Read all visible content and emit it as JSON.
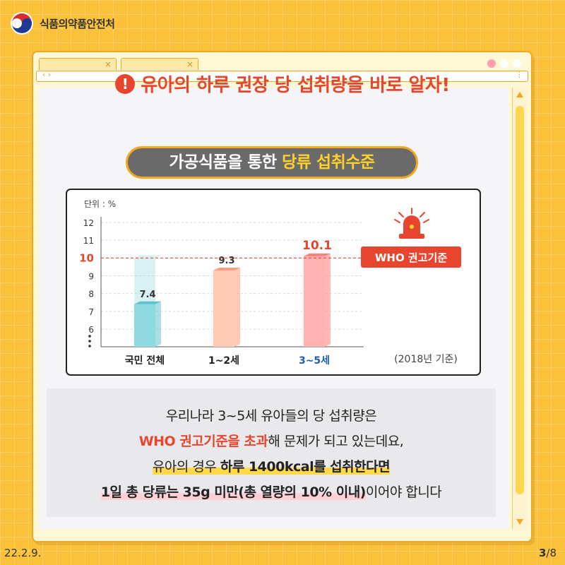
{
  "brand": {
    "name": "식품의약품안전처"
  },
  "headline": "유아의 하루 권장 당 섭취량을 바로 알자!",
  "subtitle": {
    "part1": "가공식품을 통한 ",
    "part2": "당류 섭취수준"
  },
  "chart_data": {
    "type": "bar",
    "title": "",
    "unit_label": "단위 : %",
    "categories": [
      "국민 전체",
      "1~2세",
      "3~5세"
    ],
    "values": [
      7.4,
      9.3,
      10.1
    ],
    "value_labels": [
      "7.4",
      "9.3",
      "10.1"
    ],
    "y_ticks": [
      "6",
      "7",
      "8",
      "9",
      "10",
      "11",
      "12"
    ],
    "ylim": [
      6,
      12
    ],
    "reference_line": {
      "value": 10,
      "label": "WHO 권고기준"
    },
    "footnote": "(2018년 기준)",
    "grid": true,
    "colors": {
      "bar1": "#8fd9e0",
      "bar2": "#ffc9b3",
      "bar3": "#ffb3b0",
      "reference": "#e8452e",
      "highlight_label": "#1f5fa8"
    }
  },
  "note": {
    "line1": "우리나라 3~5세 유아들의 당 섭취량은",
    "line2_red": "WHO 권고기준을 초과",
    "line2_rest": "해 문제가 되고 있는데요,",
    "line3_a": "유아의 경우 ",
    "line3_b": "하루 1400kcal를 섭취한다면",
    "line4_a": "1일 총 당류는 35g 미만(총 열량의 10% 이내)",
    "line4_b": "이어야 합니다"
  },
  "footer": {
    "date": "22.2.9.",
    "page_current": "3",
    "page_total": "/8"
  }
}
